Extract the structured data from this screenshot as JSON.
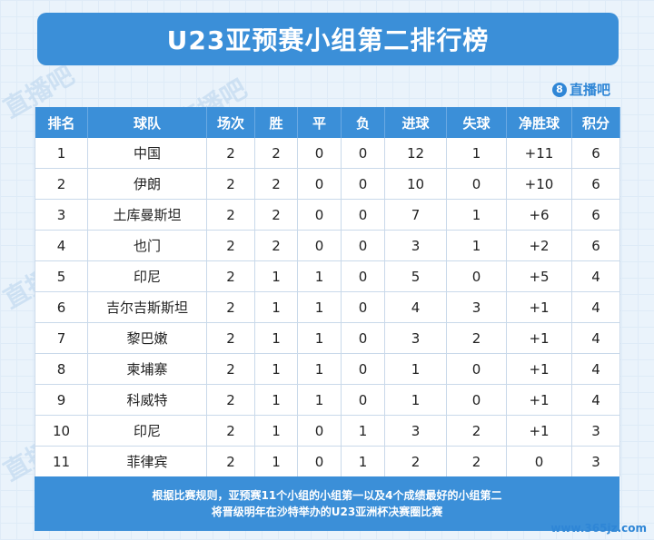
{
  "title": "U23亚预赛小组第二排行榜",
  "brand": {
    "badge": "8",
    "label": "直播吧"
  },
  "watermark": "直播吧",
  "site": "www.365jz.com",
  "columns": [
    "排名",
    "球队",
    "场次",
    "胜",
    "平",
    "负",
    "进球",
    "失球",
    "净胜球",
    "积分"
  ],
  "rows": [
    [
      "1",
      "中国",
      "2",
      "2",
      "0",
      "0",
      "12",
      "1",
      "+11",
      "6"
    ],
    [
      "2",
      "伊朗",
      "2",
      "2",
      "0",
      "0",
      "10",
      "0",
      "+10",
      "6"
    ],
    [
      "3",
      "土库曼斯坦",
      "2",
      "2",
      "0",
      "0",
      "7",
      "1",
      "+6",
      "6"
    ],
    [
      "4",
      "也门",
      "2",
      "2",
      "0",
      "0",
      "3",
      "1",
      "+2",
      "6"
    ],
    [
      "5",
      "印尼",
      "2",
      "1",
      "1",
      "0",
      "5",
      "0",
      "+5",
      "4"
    ],
    [
      "6",
      "吉尔吉斯斯坦",
      "2",
      "1",
      "1",
      "0",
      "4",
      "3",
      "+1",
      "4"
    ],
    [
      "7",
      "黎巴嫩",
      "2",
      "1",
      "1",
      "0",
      "3",
      "2",
      "+1",
      "4"
    ],
    [
      "8",
      "柬埔寨",
      "2",
      "1",
      "1",
      "0",
      "1",
      "0",
      "+1",
      "4"
    ],
    [
      "9",
      "科威特",
      "2",
      "1",
      "1",
      "0",
      "1",
      "0",
      "+1",
      "4"
    ],
    [
      "10",
      "印尼",
      "2",
      "1",
      "0",
      "1",
      "3",
      "2",
      "+1",
      "3"
    ],
    [
      "11",
      "菲律宾",
      "2",
      "1",
      "0",
      "1",
      "2",
      "2",
      "0",
      "3"
    ]
  ],
  "footer": {
    "line1": "根据比赛规则，亚预赛11个小组的小组第一以及4个成绩最好的小组第二",
    "line2": "将晋级明年在沙特举办的U23亚洲杯决赛圈比赛"
  },
  "colors": {
    "accent": "#3b8fd8",
    "background": "#eaf3fb"
  }
}
